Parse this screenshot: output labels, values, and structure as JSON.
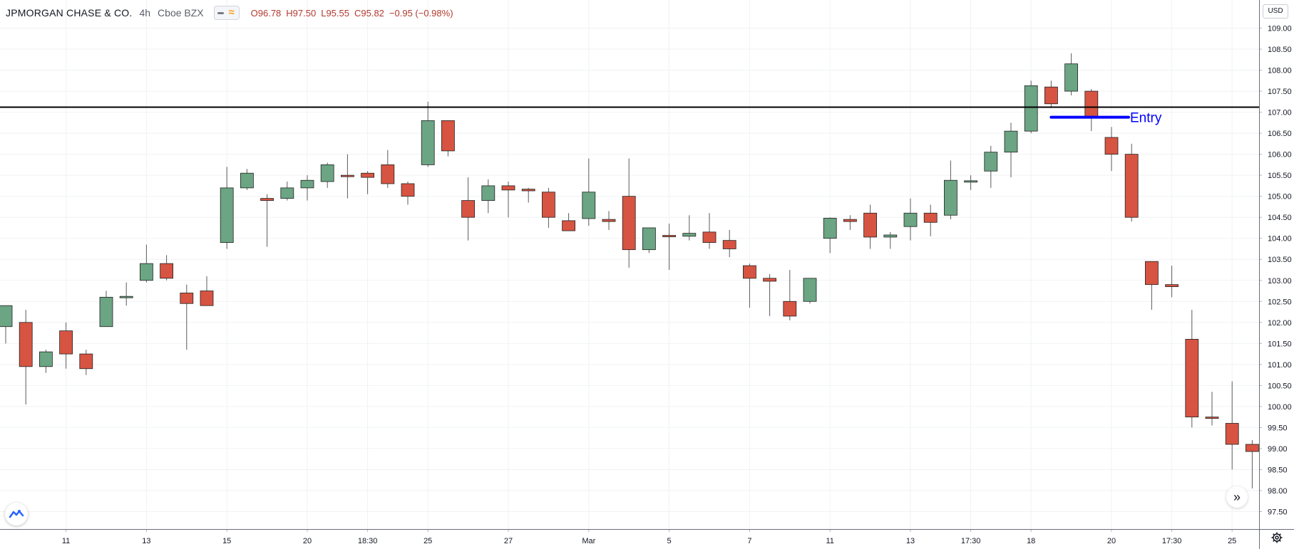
{
  "legend": {
    "symbol": "JPMORGAN CHASE & CO.",
    "interval": "4h",
    "exchange": "Cboe BZX",
    "open": "O96.78",
    "high": "H97.50",
    "low": "L95.55",
    "close": "C95.82",
    "change": "−0.95 (−0.98%)"
  },
  "currency_badge": "USD",
  "icons": {
    "logo": "tradingview-logo-icon",
    "scroll": "scroll-to-realtime-icon",
    "settings": "gear-icon",
    "visibility": "eye-icon",
    "compare": "wave-icon"
  },
  "colors": {
    "up": "#6ba583",
    "down": "#d75442",
    "wick": "#5b5b5b",
    "horizontal_line": "#000000",
    "entry_line": "#0000ff",
    "entry_text": "#0000ff",
    "grid": "#f0f2f5"
  },
  "chart_data": {
    "type": "candlestick",
    "ylim": [
      97.3,
      109.3
    ],
    "y_ticks": [
      "97.50",
      "98.00",
      "98.50",
      "99.00",
      "99.50",
      "100.00",
      "100.50",
      "101.00",
      "101.50",
      "102.00",
      "102.50",
      "103.00",
      "103.50",
      "104.00",
      "104.50",
      "105.00",
      "105.50",
      "106.00",
      "106.50",
      "107.00",
      "107.50",
      "108.00",
      "108.50",
      "109.00"
    ],
    "x_ticks": [
      {
        "index": 3,
        "label": "11"
      },
      {
        "index": 7,
        "label": "13"
      },
      {
        "index": 11,
        "label": "15"
      },
      {
        "index": 15,
        "label": "20"
      },
      {
        "index": 18,
        "label": "18:30"
      },
      {
        "index": 21,
        "label": "25"
      },
      {
        "index": 25,
        "label": "27"
      },
      {
        "index": 29,
        "label": "Mar"
      },
      {
        "index": 33,
        "label": "5"
      },
      {
        "index": 37,
        "label": "7"
      },
      {
        "index": 41,
        "label": "11"
      },
      {
        "index": 45,
        "label": "13"
      },
      {
        "index": 48,
        "label": "17:30"
      },
      {
        "index": 51,
        "label": "18"
      },
      {
        "index": 55,
        "label": "20"
      },
      {
        "index": 58,
        "label": "17:30"
      },
      {
        "index": 61,
        "label": "25"
      }
    ],
    "candles": [
      {
        "o": 101.9,
        "h": 102.4,
        "l": 101.5,
        "c": 102.4
      },
      {
        "o": 102.0,
        "h": 102.3,
        "l": 100.05,
        "c": 100.95
      },
      {
        "o": 100.95,
        "h": 101.35,
        "l": 100.8,
        "c": 101.3
      },
      {
        "o": 101.8,
        "h": 102.0,
        "l": 100.9,
        "c": 101.25
      },
      {
        "o": 101.25,
        "h": 101.35,
        "l": 100.75,
        "c": 100.9
      },
      {
        "o": 101.9,
        "h": 102.75,
        "l": 101.9,
        "c": 102.6
      },
      {
        "o": 102.6,
        "h": 102.95,
        "l": 102.4,
        "c": 102.62
      },
      {
        "o": 103.0,
        "h": 103.85,
        "l": 102.95,
        "c": 103.4
      },
      {
        "o": 103.4,
        "h": 103.6,
        "l": 103.0,
        "c": 103.05
      },
      {
        "o": 102.7,
        "h": 102.9,
        "l": 101.35,
        "c": 102.45
      },
      {
        "o": 102.75,
        "h": 103.1,
        "l": 102.4,
        "c": 102.4
      },
      {
        "o": 103.9,
        "h": 105.7,
        "l": 103.75,
        "c": 105.2
      },
      {
        "o": 105.2,
        "h": 105.65,
        "l": 105.15,
        "c": 105.55
      },
      {
        "o": 104.95,
        "h": 105.05,
        "l": 103.8,
        "c": 104.9
      },
      {
        "o": 104.95,
        "h": 105.35,
        "l": 104.9,
        "c": 105.2
      },
      {
        "o": 105.2,
        "h": 105.5,
        "l": 104.9,
        "c": 105.38
      },
      {
        "o": 105.35,
        "h": 105.8,
        "l": 105.2,
        "c": 105.75
      },
      {
        "o": 105.5,
        "h": 106.0,
        "l": 104.95,
        "c": 105.48
      },
      {
        "o": 105.55,
        "h": 105.6,
        "l": 105.05,
        "c": 105.45
      },
      {
        "o": 105.75,
        "h": 106.1,
        "l": 105.2,
        "c": 105.3
      },
      {
        "o": 105.3,
        "h": 105.35,
        "l": 104.8,
        "c": 105.0
      },
      {
        "o": 105.75,
        "h": 107.25,
        "l": 105.7,
        "c": 106.8
      },
      {
        "o": 106.8,
        "h": 106.8,
        "l": 105.95,
        "c": 106.08
      },
      {
        "o": 104.9,
        "h": 105.45,
        "l": 103.95,
        "c": 104.5
      },
      {
        "o": 104.9,
        "h": 105.4,
        "l": 104.6,
        "c": 105.25
      },
      {
        "o": 105.25,
        "h": 105.35,
        "l": 104.5,
        "c": 105.15
      },
      {
        "o": 105.17,
        "h": 105.2,
        "l": 104.85,
        "c": 105.13
      },
      {
        "o": 105.1,
        "h": 105.2,
        "l": 104.25,
        "c": 104.5
      },
      {
        "o": 104.42,
        "h": 104.6,
        "l": 104.2,
        "c": 104.18
      },
      {
        "o": 104.47,
        "h": 105.9,
        "l": 104.3,
        "c": 105.1
      },
      {
        "o": 104.45,
        "h": 104.65,
        "l": 104.2,
        "c": 104.4
      },
      {
        "o": 105.0,
        "h": 105.9,
        "l": 103.3,
        "c": 103.73
      },
      {
        "o": 103.73,
        "h": 104.25,
        "l": 103.65,
        "c": 104.25
      },
      {
        "o": 104.07,
        "h": 104.35,
        "l": 103.25,
        "c": 104.05
      },
      {
        "o": 104.05,
        "h": 104.55,
        "l": 103.95,
        "c": 104.12
      },
      {
        "o": 104.15,
        "h": 104.6,
        "l": 103.75,
        "c": 103.9
      },
      {
        "o": 103.95,
        "h": 104.2,
        "l": 103.55,
        "c": 103.75
      },
      {
        "o": 103.35,
        "h": 103.4,
        "l": 102.35,
        "c": 103.05
      },
      {
        "o": 103.05,
        "h": 103.15,
        "l": 102.15,
        "c": 102.98
      },
      {
        "o": 102.5,
        "h": 103.25,
        "l": 102.05,
        "c": 102.15
      },
      {
        "o": 102.5,
        "h": 103.05,
        "l": 102.45,
        "c": 103.05
      },
      {
        "o": 104.0,
        "h": 104.5,
        "l": 103.65,
        "c": 104.48
      },
      {
        "o": 104.45,
        "h": 104.55,
        "l": 104.2,
        "c": 104.4
      },
      {
        "o": 104.6,
        "h": 104.8,
        "l": 103.75,
        "c": 104.03
      },
      {
        "o": 104.03,
        "h": 104.15,
        "l": 103.75,
        "c": 104.08
      },
      {
        "o": 104.28,
        "h": 104.95,
        "l": 103.95,
        "c": 104.6
      },
      {
        "o": 104.6,
        "h": 104.8,
        "l": 104.05,
        "c": 104.38
      },
      {
        "o": 104.55,
        "h": 105.85,
        "l": 104.45,
        "c": 105.38
      },
      {
        "o": 105.35,
        "h": 105.5,
        "l": 105.15,
        "c": 105.37
      },
      {
        "o": 105.6,
        "h": 106.2,
        "l": 105.2,
        "c": 106.05
      },
      {
        "o": 106.05,
        "h": 106.75,
        "l": 105.45,
        "c": 106.55
      },
      {
        "o": 106.55,
        "h": 107.75,
        "l": 106.5,
        "c": 107.63
      },
      {
        "o": 107.6,
        "h": 107.75,
        "l": 107.1,
        "c": 107.2
      },
      {
        "o": 107.5,
        "h": 108.4,
        "l": 107.4,
        "c": 108.15
      },
      {
        "o": 107.5,
        "h": 107.55,
        "l": 106.55,
        "c": 106.9
      },
      {
        "o": 106.4,
        "h": 106.65,
        "l": 105.6,
        "c": 106.0
      },
      {
        "o": 106.0,
        "h": 106.25,
        "l": 104.4,
        "c": 104.5
      },
      {
        "o": 103.45,
        "h": 103.45,
        "l": 102.3,
        "c": 102.9
      },
      {
        "o": 102.9,
        "h": 103.35,
        "l": 102.6,
        "c": 102.85
      },
      {
        "o": 101.6,
        "h": 102.3,
        "l": 99.5,
        "c": 99.75
      },
      {
        "o": 99.75,
        "h": 100.35,
        "l": 99.55,
        "c": 99.73
      },
      {
        "o": 99.6,
        "h": 100.6,
        "l": 98.5,
        "c": 99.1
      },
      {
        "o": 99.1,
        "h": 99.2,
        "l": 98.05,
        "c": 98.93
      }
    ],
    "horizontal_line": 107.12,
    "entry": {
      "label": "Entry",
      "price": 106.88,
      "from_index": 52,
      "to_index": 55.85
    }
  }
}
